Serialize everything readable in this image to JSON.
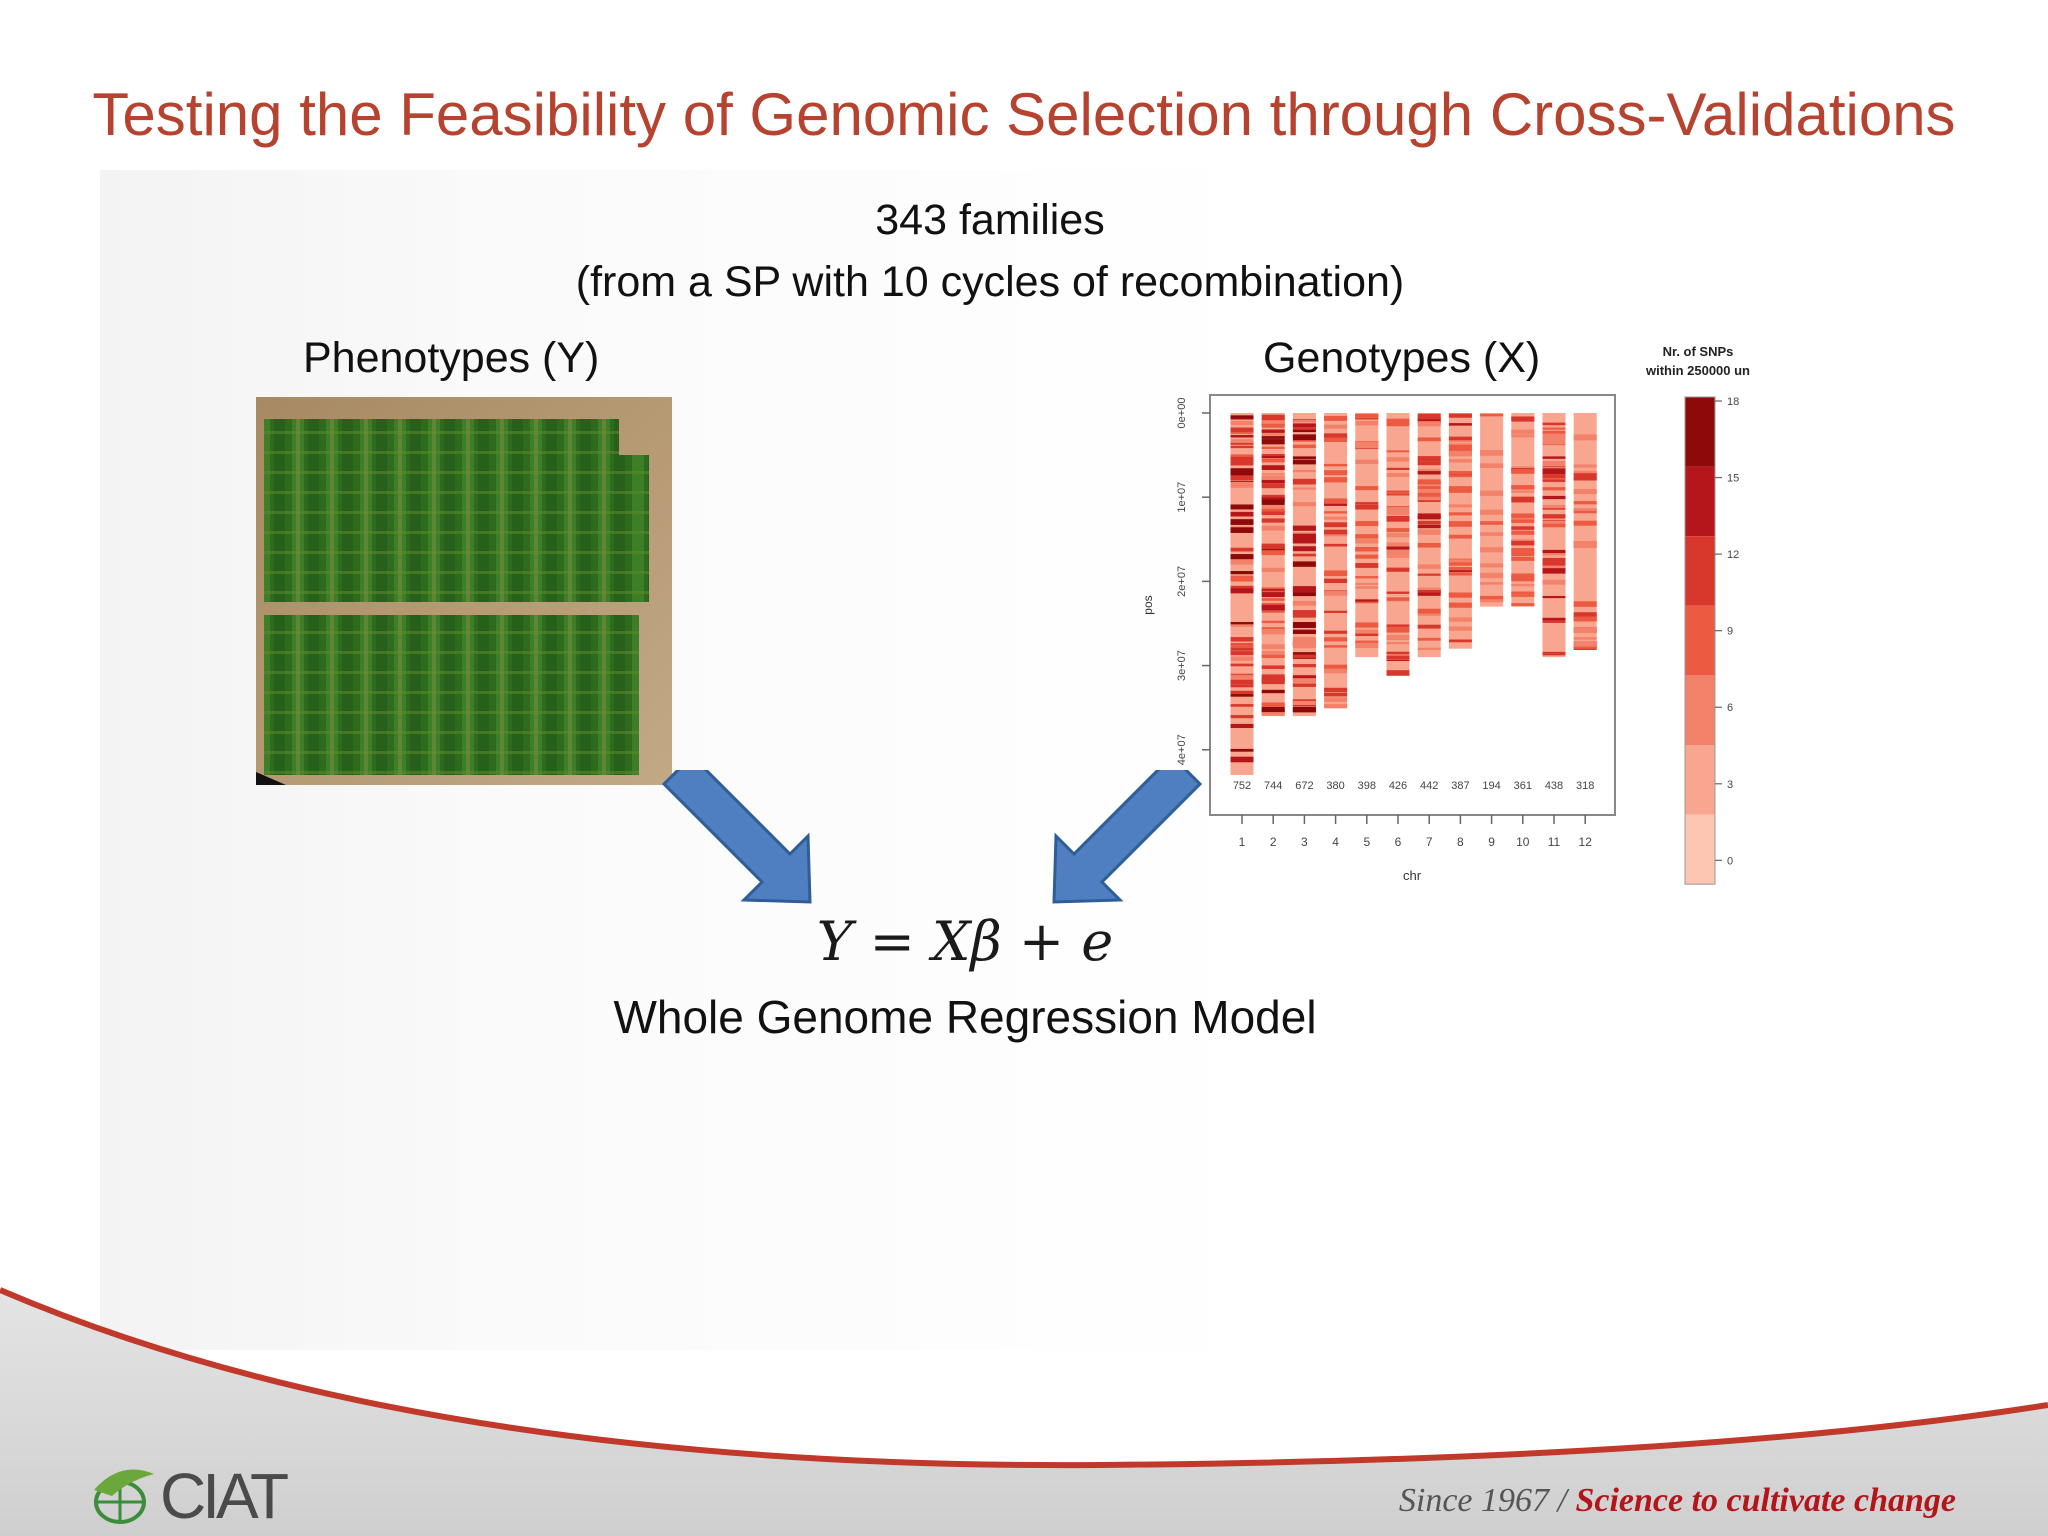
{
  "slide": {
    "title": "Testing the Feasibility of Genomic Selection through Cross-Validations",
    "subtitle_line1": "343 families",
    "subtitle_line2": "(from a SP with 10 cycles of recombination)",
    "phenotypes_label": "Phenotypes (Y)",
    "genotypes_label": "Genotypes (X)",
    "equation": "Y = Xβ + e",
    "model_label": "Whole Genome Regression Model"
  },
  "footer": {
    "logo_text": "CIAT",
    "tagline_prefix": "Since 1967 / ",
    "tagline_emphasis": "Science to cultivate change"
  },
  "colors": {
    "title": "#b5432f",
    "arrow": "#4f7fc0",
    "tagline_red": "#b3151b",
    "footer_curve": "#c0392b"
  },
  "chart_data": {
    "type": "heatmap",
    "xlabel": "chr",
    "ylabel": "pos",
    "categories": [
      "1",
      "2",
      "3",
      "4",
      "5",
      "6",
      "7",
      "8",
      "9",
      "10",
      "11",
      "12"
    ],
    "snp_counts": [
      752,
      744,
      672,
      380,
      398,
      426,
      442,
      387,
      194,
      361,
      438,
      318
    ],
    "chromosome_length": [
      43000000.0,
      36000000.0,
      36000000.0,
      35000000.0,
      29000000.0,
      31000000.0,
      29000000.0,
      28000000.0,
      23000000.0,
      23000000.0,
      29000000.0,
      28000000.0
    ],
    "y_ticks": [
      "0e+00",
      "1e+07",
      "2e+07",
      "3e+07",
      "4e+07"
    ],
    "ylim": [
      0,
      43000000.0
    ],
    "legend": {
      "title_line1": "Nr. of SNPs",
      "title_line2": "within 250000 un",
      "ticks": [
        "18",
        "15",
        "12",
        "9",
        "6",
        "3",
        "0"
      ],
      "colors": [
        "#8e0a0a",
        "#b5161b",
        "#d8372c",
        "#ec5a42",
        "#f3826b",
        "#f8a68f",
        "#fcc6b3"
      ]
    }
  }
}
